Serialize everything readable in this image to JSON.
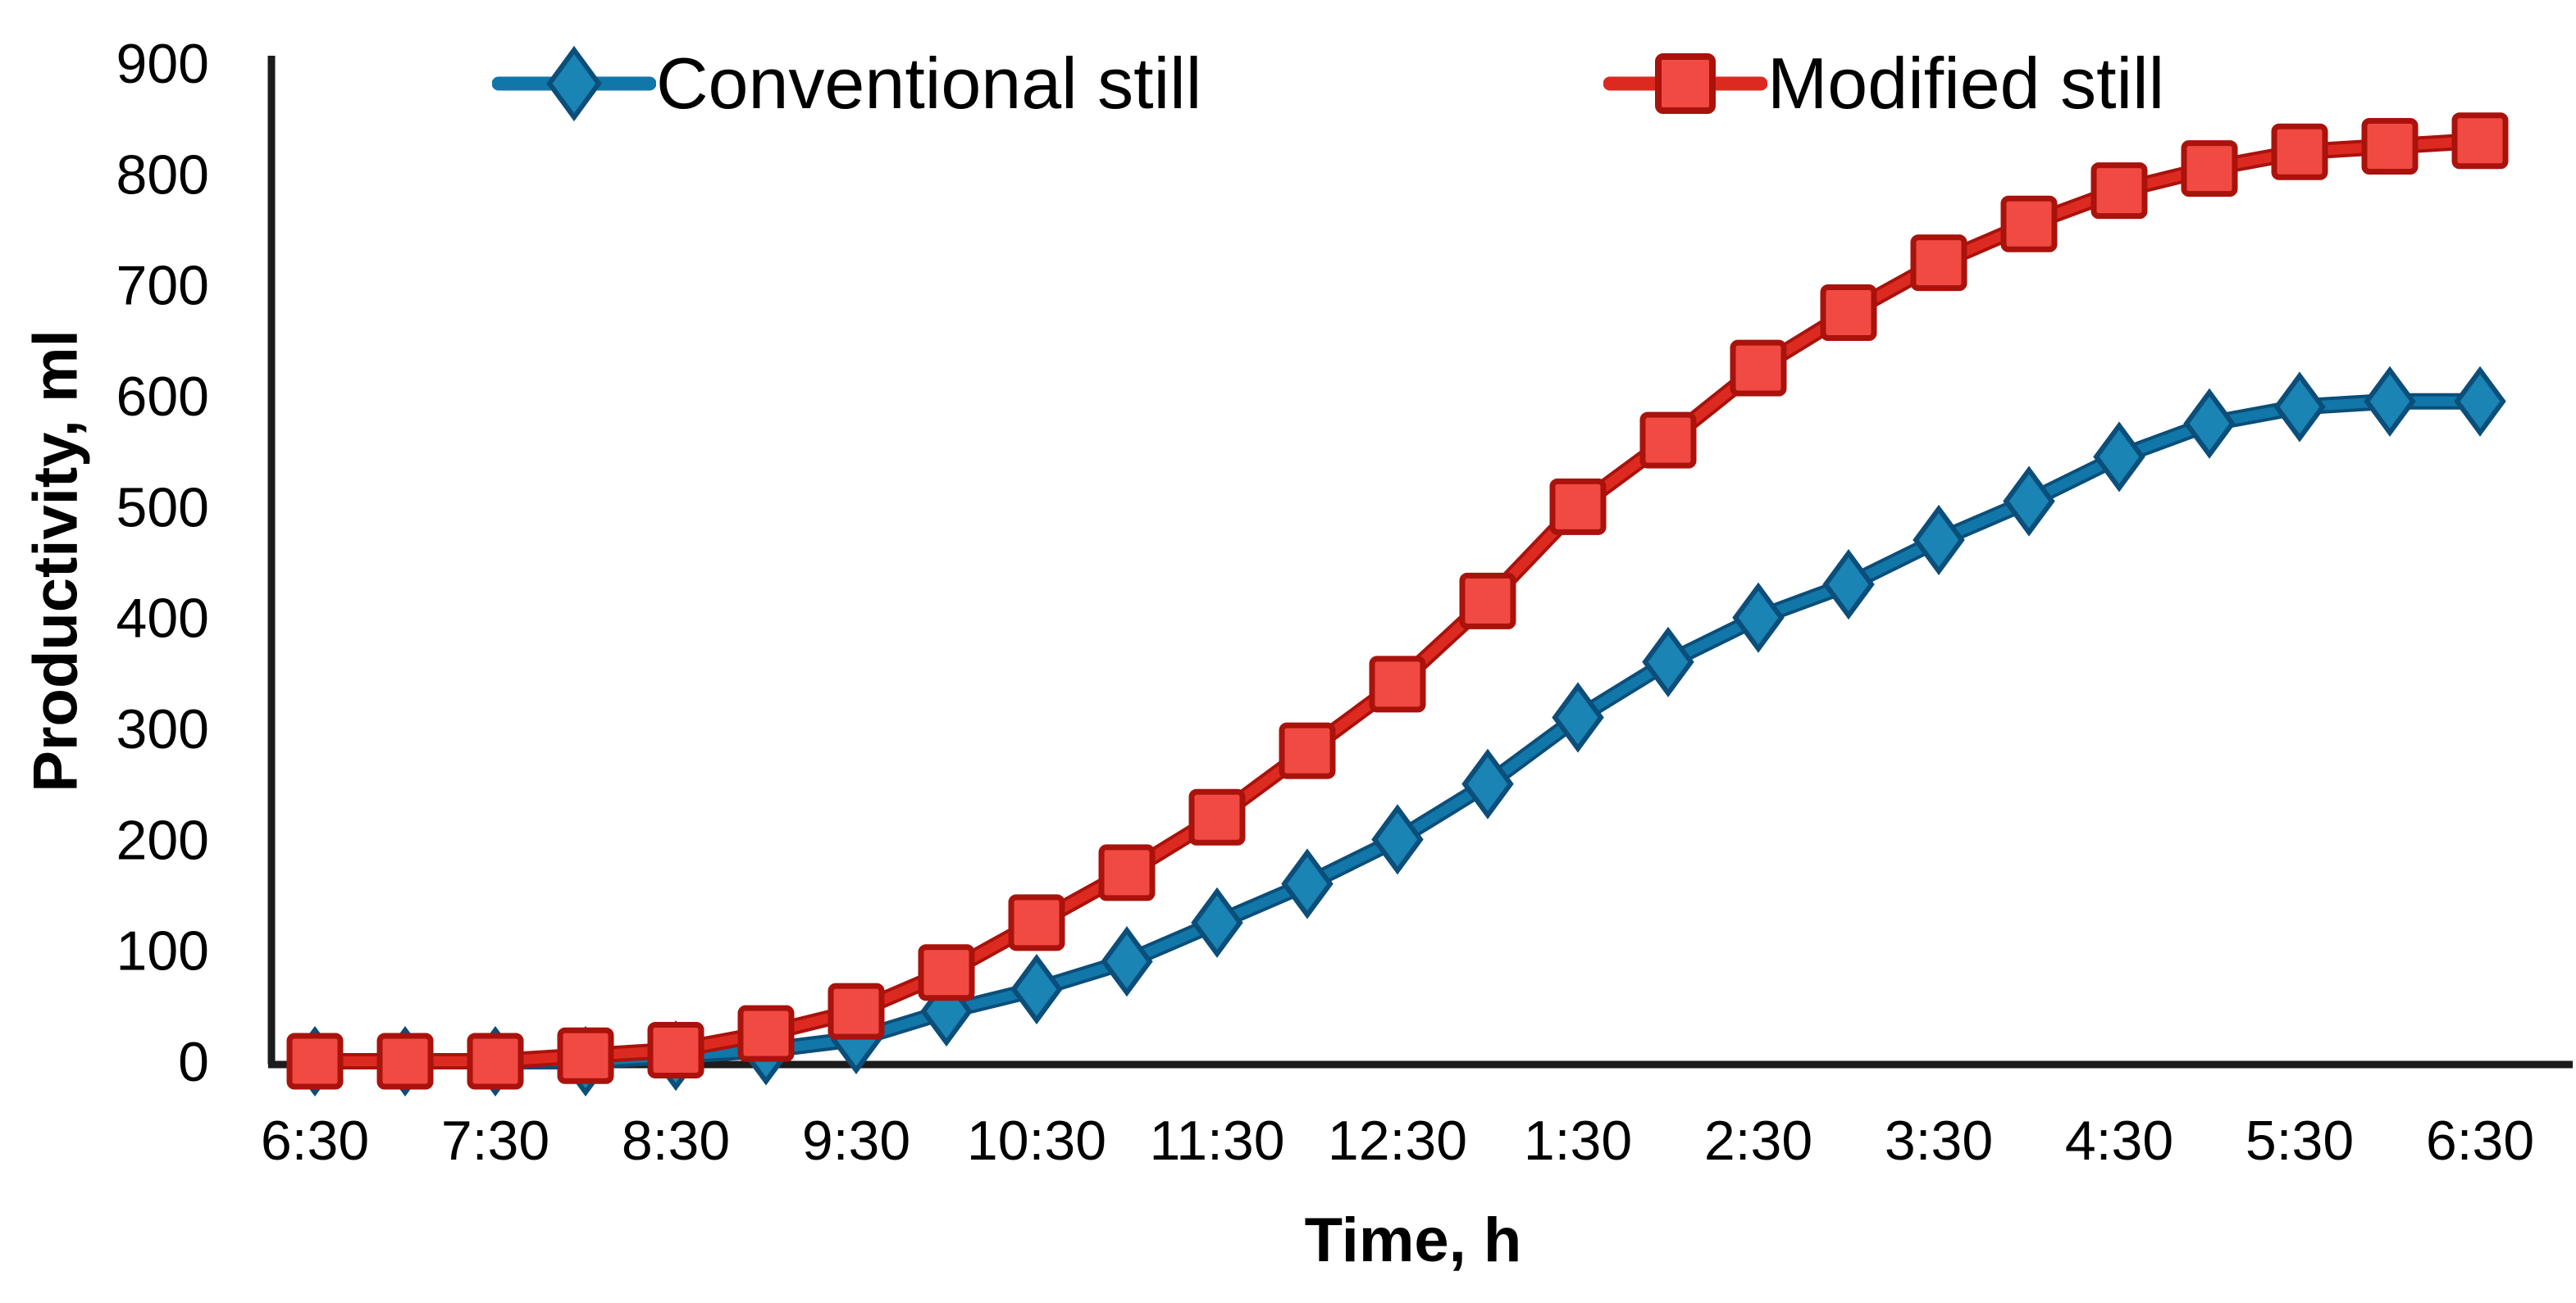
{
  "figure": {
    "background": "#ffffff",
    "axis_color": "#1c1c1c"
  },
  "legend": {
    "items": [
      {
        "label": "Conventional still"
      },
      {
        "label": "Modified still"
      }
    ]
  },
  "axes": {
    "y_title": "Productivity, ml",
    "x_title": "Time, h",
    "y_ticks": [
      "0",
      "100",
      "200",
      "300",
      "400",
      "500",
      "600",
      "700",
      "800",
      "900"
    ],
    "x_tick_labels": [
      "6:30",
      "7:30",
      "8:30",
      "9:30",
      "10:30",
      "11:30",
      "12:30",
      "1:30",
      "2:30",
      "3:30",
      "4:30",
      "5:30",
      "6:30"
    ]
  },
  "chart_data": {
    "type": "line",
    "title": "",
    "xlabel": "Time, h",
    "ylabel": "Productivity, ml",
    "ylim": [
      0,
      900
    ],
    "y_tick_step": 100,
    "grid": false,
    "legend_position": "top",
    "categories": [
      "6:30",
      "7:00",
      "7:30",
      "8:00",
      "8:30",
      "9:00",
      "9:30",
      "10:00",
      "10:30",
      "11:00",
      "11:30",
      "12:00",
      "12:30",
      "1:00",
      "1:30",
      "2:00",
      "2:30",
      "3:00",
      "3:30",
      "4:00",
      "4:30",
      "5:00",
      "5:30",
      "6:00",
      "6:30"
    ],
    "x_labels_every": 2,
    "series": [
      {
        "name": "Conventional still",
        "marker": "diamond",
        "fill_color": "#1a84b4",
        "line_color": "#1177a8",
        "edge_color": "#0b4e7a",
        "values": [
          0,
          0,
          0,
          0,
          5,
          10,
          20,
          45,
          65,
          90,
          125,
          160,
          200,
          250,
          310,
          360,
          400,
          430,
          470,
          505,
          545,
          575,
          590,
          595,
          595
        ]
      },
      {
        "name": "Modified still",
        "marker": "square",
        "fill_color": "#f04a42",
        "line_color": "#dd2a21",
        "edge_color": "#aa120c",
        "values": [
          0,
          0,
          0,
          5,
          10,
          25,
          45,
          80,
          125,
          170,
          220,
          280,
          340,
          415,
          500,
          560,
          625,
          675,
          720,
          755,
          785,
          805,
          820,
          825,
          830
        ]
      }
    ]
  }
}
